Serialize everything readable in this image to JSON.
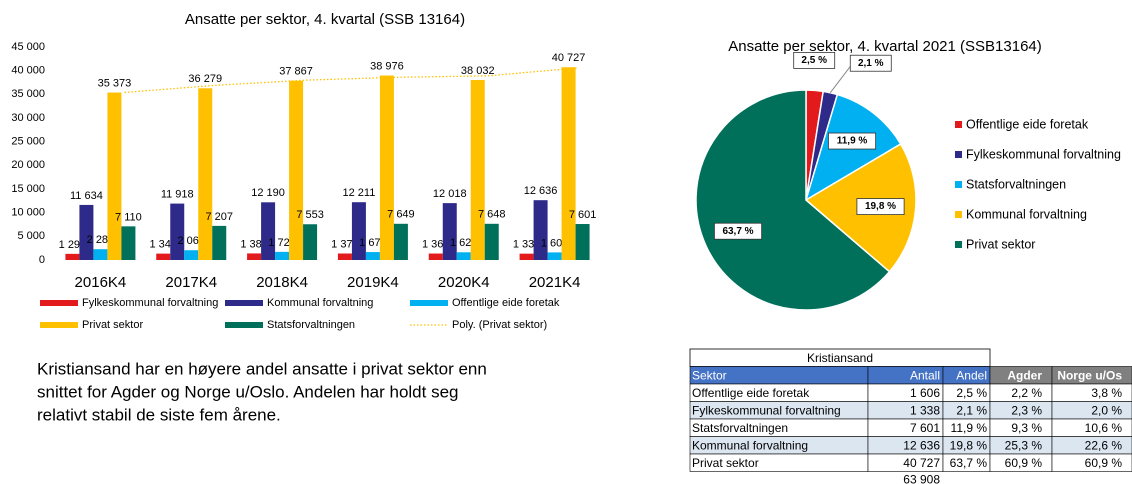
{
  "chart_data": [
    {
      "type": "bar",
      "title": "Ansatte per sektor, 4. kvartal (SSB 13164)",
      "categories": [
        "2016K4",
        "2017K4",
        "2018K4",
        "2019K4",
        "2020K4",
        "2021K4"
      ],
      "series": [
        {
          "name": "Fylkeskommunal forvaltning",
          "color": "#e31a1c",
          "values": [
            1299,
            1348,
            1389,
            1372,
            1366,
            1338
          ],
          "value_labels": [
            "1 299",
            "1 348",
            "1 389",
            "1 372",
            "1 366",
            "1 338"
          ]
        },
        {
          "name": "Kommunal forvaltning",
          "color": "#2e2a8a",
          "values": [
            11634,
            11918,
            12190,
            12211,
            12018,
            12636
          ],
          "value_labels": [
            "11 634",
            "11 918",
            "12 190",
            "12 211",
            "12 018",
            "12 636"
          ]
        },
        {
          "name": "Offentlige eide foretak",
          "color": "#00b0f0",
          "values": [
            2281,
            2064,
            1720,
            1673,
            1628,
            1606
          ],
          "value_labels": [
            "2 281",
            "2 064",
            "1 720",
            "1 673",
            "1 628",
            "1 606"
          ]
        },
        {
          "name": "Privat sektor",
          "color": "#ffc000",
          "values": [
            35373,
            36279,
            37867,
            38976,
            38032,
            40727
          ],
          "value_labels": [
            "35 373",
            "36 279",
            "37 867",
            "38 976",
            "38 032",
            "40 727"
          ]
        },
        {
          "name": "Statsforvaltningen",
          "color": "#00705a",
          "values": [
            7110,
            7207,
            7553,
            7649,
            7648,
            7601
          ],
          "value_labels": [
            "7 110",
            "7 207",
            "7 553",
            "7 649",
            "7 648",
            "7 601"
          ]
        },
        {
          "name": "Poly. (Privat sektor)",
          "color": "#ffc000",
          "line": "dotted",
          "values": [
            35400,
            36900,
            38000,
            38600,
            38900,
            40600
          ]
        }
      ],
      "ylim": [
        0,
        45000
      ],
      "yticks": [
        0,
        {
          "value": 5000,
          "label": "5 000"
        },
        {
          "value": 10000,
          "label": "10 000"
        },
        {
          "value": 15000,
          "label": "15 000"
        },
        {
          "value": 20000,
          "label": "20 000"
        },
        {
          "value": 25000,
          "label": "25 000"
        },
        {
          "value": 30000,
          "label": "30 000"
        },
        {
          "value": 35000,
          "label": "35 000"
        },
        {
          "value": 40000,
          "label": "40 000"
        },
        {
          "value": 45000,
          "label": "45 000"
        }
      ],
      "legend": "bottom"
    },
    {
      "type": "pie",
      "title": "Ansatte per sektor, 4. kvartal 2021 (SSB13164)",
      "categories": [
        "Offentlige eide foretak",
        "Fylkeskommunal forvaltning",
        "Statsforvaltningen",
        "Kommunal forvaltning",
        "Privat sektor"
      ],
      "values": [
        2.5,
        2.1,
        11.9,
        19.8,
        63.7
      ],
      "value_labels": [
        "2,5 %",
        "2,1 %",
        "11,9 %",
        "19,8 %",
        "63,7 %"
      ],
      "colors": [
        "#e31a1c",
        "#2e2a8a",
        "#00b0f0",
        "#ffc000",
        "#00705a"
      ],
      "legend": "right"
    }
  ],
  "paragraph": {
    "lines": [
      "Kristiansand har en høyere andel ansatte i privat sektor enn",
      "snittet for Agder og Norge u/Oslo. Andelen har holdt seg",
      "relativt stabil de siste fem årene."
    ]
  },
  "table": {
    "title": "Kristiansand",
    "header": [
      "Sektor",
      "Antall",
      "Andel",
      "Agder",
      "Norge u/Os"
    ],
    "rows": [
      [
        "Offentlige eide foretak",
        "1 606",
        "2,5 %",
        "2,2 %",
        "3,8 %"
      ],
      [
        "Fylkeskommunal forvaltning",
        "1 338",
        "2,1 %",
        "2,3 %",
        "2,0 %"
      ],
      [
        "Statsforvaltningen",
        "7 601",
        "11,9 %",
        "9,3 %",
        "10,6 %"
      ],
      [
        "Kommunal forvaltning",
        "12 636",
        "19,8 %",
        "25,3 %",
        "22,6 %"
      ],
      [
        "Privat sektor",
        "40 727",
        "63,7 %",
        "60,9 %",
        "60,9 %"
      ]
    ],
    "total": "63 908"
  }
}
